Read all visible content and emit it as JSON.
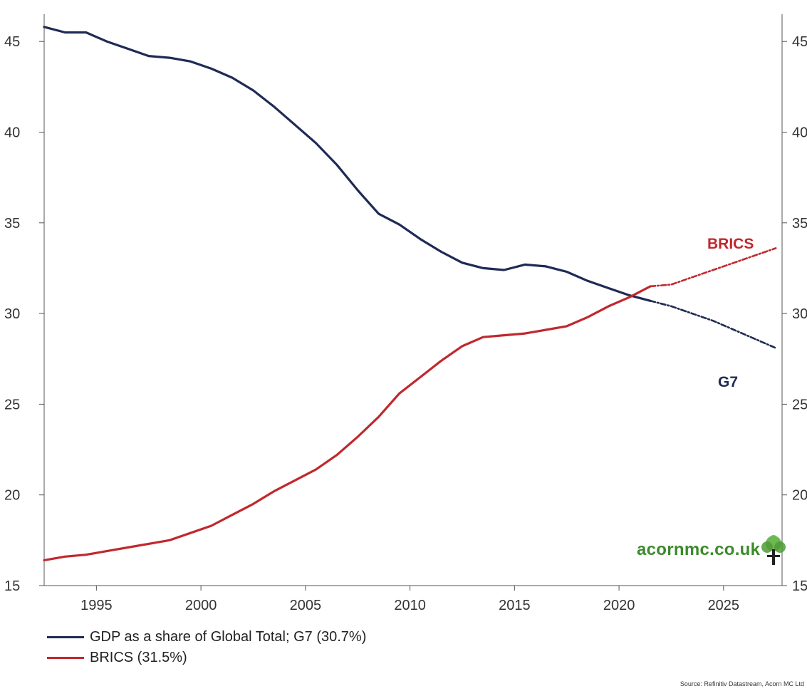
{
  "chart_data": {
    "type": "line",
    "title": "",
    "xlabel": "",
    "ylabel": "",
    "xlim": [
      1992.5,
      2027.8
    ],
    "ylim": [
      15,
      46.5
    ],
    "x_ticks": [
      1995,
      2000,
      2005,
      2010,
      2015,
      2020,
      2025
    ],
    "y_ticks": [
      15,
      20,
      25,
      30,
      35,
      40,
      45
    ],
    "grid": false,
    "legend_position": "bottom-left",
    "series": [
      {
        "name": "GDP as a share of Global Total; G7 (30.7%)",
        "inline_label": "G7",
        "color": "#1f2a55",
        "actual": [
          [
            1992.5,
            45.8
          ],
          [
            1993.5,
            45.5
          ],
          [
            1994.5,
            45.5
          ],
          [
            1995.5,
            45.0
          ],
          [
            1996.5,
            44.6
          ],
          [
            1997.5,
            44.2
          ],
          [
            1998.5,
            44.1
          ],
          [
            1999.5,
            43.9
          ],
          [
            2000.5,
            43.5
          ],
          [
            2001.5,
            43.0
          ],
          [
            2002.5,
            42.3
          ],
          [
            2003.5,
            41.4
          ],
          [
            2004.5,
            40.4
          ],
          [
            2005.5,
            39.4
          ],
          [
            2006.5,
            38.2
          ],
          [
            2007.5,
            36.8
          ],
          [
            2008.5,
            35.5
          ],
          [
            2009.5,
            34.9
          ],
          [
            2010.5,
            34.1
          ],
          [
            2011.5,
            33.4
          ],
          [
            2012.5,
            32.8
          ],
          [
            2013.5,
            32.5
          ],
          [
            2014.5,
            32.4
          ],
          [
            2015.5,
            32.7
          ],
          [
            2016.5,
            32.6
          ],
          [
            2017.5,
            32.3
          ],
          [
            2018.5,
            31.8
          ],
          [
            2019.5,
            31.4
          ],
          [
            2020.5,
            31.0
          ],
          [
            2021.5,
            30.7
          ]
        ],
        "forecast": [
          [
            2021.5,
            30.7
          ],
          [
            2022.5,
            30.4
          ],
          [
            2023.5,
            30.0
          ],
          [
            2024.5,
            29.6
          ],
          [
            2025.5,
            29.1
          ],
          [
            2026.5,
            28.6
          ],
          [
            2027.5,
            28.1
          ]
        ]
      },
      {
        "name": "BRICS (31.5%)",
        "inline_label": "BRICS",
        "color": "#c0282d",
        "actual": [
          [
            1992.5,
            16.4
          ],
          [
            1993.5,
            16.6
          ],
          [
            1994.5,
            16.7
          ],
          [
            1995.5,
            16.9
          ],
          [
            1996.5,
            17.1
          ],
          [
            1997.5,
            17.3
          ],
          [
            1998.5,
            17.5
          ],
          [
            1999.5,
            17.9
          ],
          [
            2000.5,
            18.3
          ],
          [
            2001.5,
            18.9
          ],
          [
            2002.5,
            19.5
          ],
          [
            2003.5,
            20.2
          ],
          [
            2004.5,
            20.8
          ],
          [
            2005.5,
            21.4
          ],
          [
            2006.5,
            22.2
          ],
          [
            2007.5,
            23.2
          ],
          [
            2008.5,
            24.3
          ],
          [
            2009.5,
            25.6
          ],
          [
            2010.5,
            26.5
          ],
          [
            2011.5,
            27.4
          ],
          [
            2012.5,
            28.2
          ],
          [
            2013.5,
            28.7
          ],
          [
            2014.5,
            28.8
          ],
          [
            2015.5,
            28.9
          ],
          [
            2016.5,
            29.1
          ],
          [
            2017.5,
            29.3
          ],
          [
            2018.5,
            29.8
          ],
          [
            2019.5,
            30.4
          ],
          [
            2020.5,
            30.9
          ],
          [
            2021.5,
            31.5
          ]
        ],
        "forecast": [
          [
            2021.5,
            31.5
          ],
          [
            2022.5,
            31.6
          ],
          [
            2023.5,
            32.0
          ],
          [
            2024.5,
            32.4
          ],
          [
            2025.5,
            32.8
          ],
          [
            2026.5,
            33.2
          ],
          [
            2027.5,
            33.6
          ]
        ]
      }
    ]
  },
  "brand": {
    "text": "acornmc.co.uk",
    "logo_icon": "tree-icon",
    "color": "#3b8a2b"
  },
  "source": "Source: Refinitiv Datastream, Acorn MC Ltd"
}
